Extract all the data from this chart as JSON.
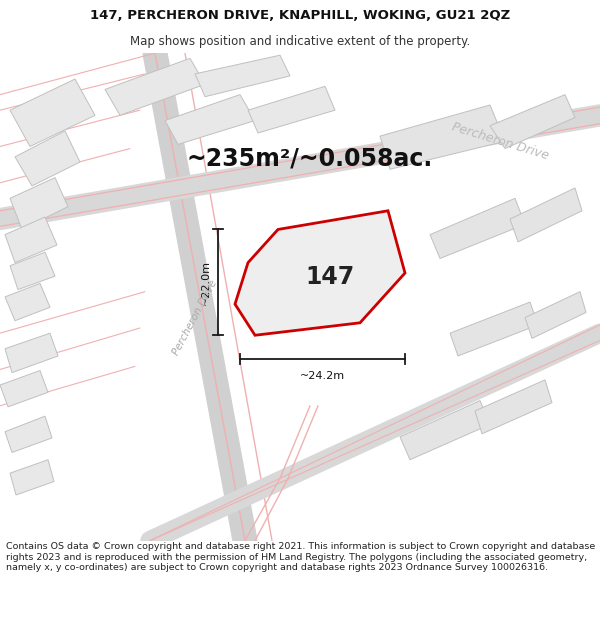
{
  "title_line1": "147, PERCHERON DRIVE, KNAPHILL, WOKING, GU21 2QZ",
  "title_line2": "Map shows position and indicative extent of the property.",
  "footer": "Contains OS data © Crown copyright and database right 2021. This information is subject to Crown copyright and database rights 2023 and is reproduced with the permission of HM Land Registry. The polygons (including the associated geometry, namely x, y co-ordinates) are subject to Crown copyright and database rights 2023 Ordnance Survey 100026316.",
  "area_text": "~235m²/~0.058ac.",
  "label_147": "147",
  "dim_vertical": "~22.0m",
  "dim_horizontal": "~24.2m",
  "road_label_diag": "Percheron Drive",
  "road_label_top": "Percheron Drive",
  "map_bg": "#f7f7f7",
  "building_fill": "#e8e8e8",
  "building_edge": "#c0c0c0",
  "road_fill": "#f0f0f0",
  "road_pink": "#f0b0b0",
  "plot_fill": "#eeeeee",
  "plot_border": "#cc0000",
  "dim_color": "#1a1a1a",
  "title_fs": 9.5,
  "subtitle_fs": 8.5,
  "footer_fs": 6.8,
  "area_fs": 17,
  "label_fs": 17,
  "dim_fs": 8
}
